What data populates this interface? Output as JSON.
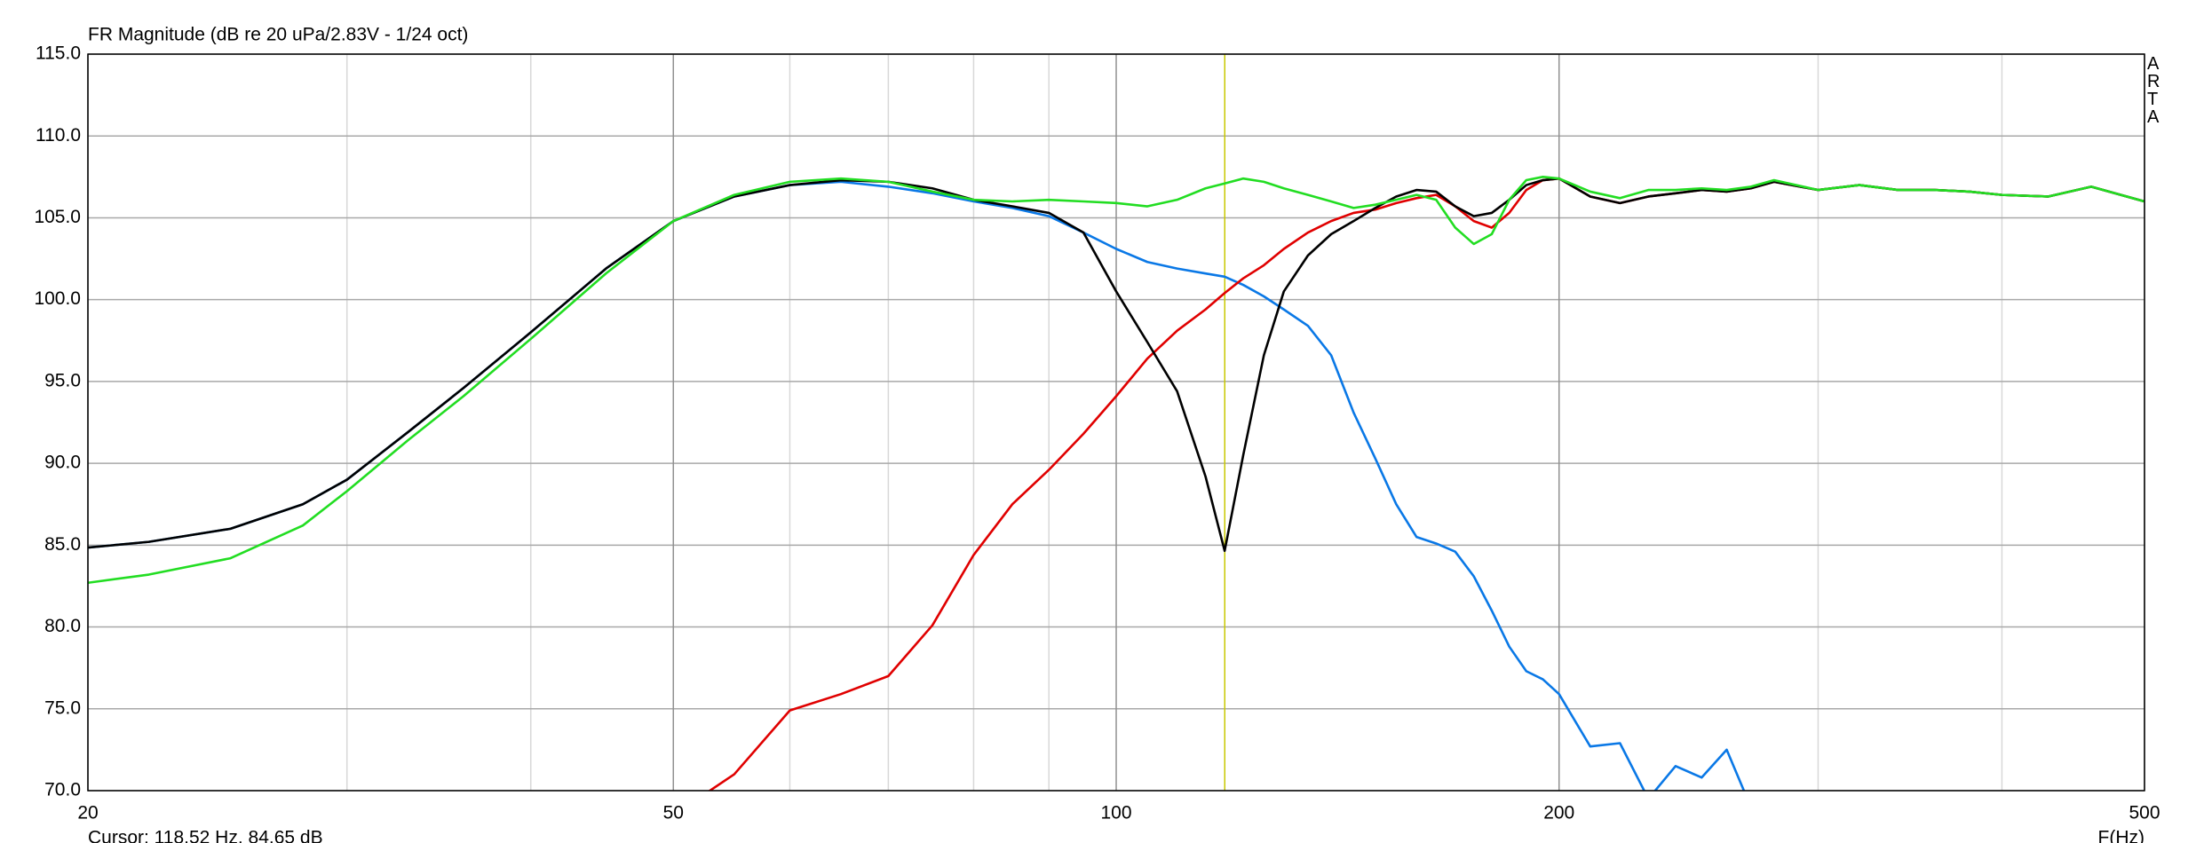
{
  "chart_data": {
    "type": "line",
    "title": "FR Magnitude (dB re 20 uPa/2.83V - 1/24 oct)",
    "x_label": "F(Hz)",
    "watermark": "ARTA",
    "cursor": {
      "label": "Cursor: 118.52 Hz, 84.65 dB",
      "x": 118.52,
      "color": "#c8c800"
    },
    "x_log": true,
    "grid": true,
    "xlim": [
      20,
      500
    ],
    "xticks": [
      20,
      50,
      100,
      200,
      500
    ],
    "xminor": [
      30,
      40,
      60,
      70,
      80,
      90,
      300,
      400
    ],
    "ylim": [
      70,
      115
    ],
    "yticks": [
      {
        "value": 70,
        "label": "70.0"
      },
      {
        "value": 75,
        "label": "75.0"
      },
      {
        "value": 80,
        "label": "80.0"
      },
      {
        "value": 85,
        "label": "85.0"
      },
      {
        "value": 90,
        "label": "90.0"
      },
      {
        "value": 95,
        "label": "95.0"
      },
      {
        "value": 100,
        "label": "100.0"
      },
      {
        "value": 105,
        "label": "105.0"
      },
      {
        "value": 110,
        "label": "110.0"
      },
      {
        "value": 115,
        "label": "115.0"
      }
    ],
    "x": [
      20,
      22,
      25,
      28,
      30,
      33,
      36,
      40,
      45,
      50,
      55,
      60,
      65,
      70,
      75,
      80,
      85,
      90,
      95,
      100,
      105,
      110,
      115,
      118.5,
      122,
      126,
      130,
      135,
      140,
      145,
      150,
      155,
      160,
      165,
      170,
      175,
      180,
      185,
      190,
      195,
      200,
      210,
      220,
      230,
      240,
      250,
      260,
      270,
      280,
      300,
      320,
      340,
      360,
      380,
      400,
      430,
      460,
      500
    ],
    "series": [
      {
        "color": "#0a78e6",
        "values": [
          84.85,
          85.2,
          86.0,
          87.5,
          89.0,
          91.9,
          94.6,
          98.0,
          101.9,
          104.8,
          106.3,
          107.0,
          107.2,
          106.9,
          106.5,
          106.0,
          105.6,
          105.1,
          104.1,
          103.1,
          102.3,
          101.9,
          101.6,
          101.4,
          100.9,
          100.2,
          99.4,
          98.4,
          96.6,
          93.1,
          90.3,
          87.5,
          85.5,
          85.1,
          84.6,
          83.1,
          81.0,
          78.8,
          77.3,
          76.8,
          75.9,
          72.7,
          72.9,
          69.5,
          71.5,
          70.8,
          72.5,
          69.0,
          null,
          null,
          null,
          null,
          null,
          null,
          null,
          null,
          null,
          null
        ]
      },
      {
        "color": "#e00000",
        "values": [
          null,
          null,
          null,
          null,
          null,
          null,
          null,
          null,
          null,
          68.5,
          71.0,
          74.9,
          75.9,
          77.0,
          80.1,
          84.4,
          87.5,
          89.6,
          91.8,
          94.1,
          96.4,
          98.1,
          99.4,
          100.4,
          101.3,
          102.1,
          103.1,
          104.1,
          104.8,
          105.3,
          105.5,
          105.9,
          106.2,
          106.4,
          105.7,
          104.8,
          104.4,
          105.3,
          106.7,
          107.3,
          107.4,
          106.3,
          105.9,
          106.3,
          106.5,
          106.7,
          106.6,
          106.8,
          107.2,
          106.7,
          107.0,
          106.7,
          106.7,
          106.6,
          106.4,
          106.3,
          106.9,
          106.0
        ]
      },
      {
        "color": "#000000",
        "values": [
          84.85,
          85.2,
          86.0,
          87.5,
          89.0,
          91.9,
          94.6,
          98.0,
          101.9,
          104.8,
          106.3,
          107.0,
          107.3,
          107.2,
          106.8,
          106.1,
          105.7,
          105.3,
          104.1,
          100.5,
          97.4,
          94.4,
          89.2,
          84.65,
          90.5,
          96.6,
          100.5,
          102.7,
          104.0,
          104.8,
          105.6,
          106.3,
          106.7,
          106.6,
          105.7,
          105.1,
          105.3,
          106.1,
          107.0,
          107.3,
          107.4,
          106.3,
          105.9,
          106.3,
          106.5,
          106.7,
          106.6,
          106.8,
          107.2,
          106.7,
          107.0,
          106.7,
          106.7,
          106.6,
          106.4,
          106.3,
          106.9,
          106.0
        ]
      },
      {
        "color": "#22dd22",
        "values": [
          82.7,
          83.2,
          84.2,
          86.2,
          88.3,
          91.4,
          94.1,
          97.6,
          101.6,
          104.8,
          106.4,
          107.2,
          107.4,
          107.2,
          106.6,
          106.1,
          106.0,
          106.1,
          106.0,
          105.9,
          105.7,
          106.1,
          106.8,
          107.1,
          107.4,
          107.2,
          106.8,
          106.4,
          106.0,
          105.6,
          105.8,
          106.1,
          106.4,
          106.1,
          104.4,
          103.4,
          104.0,
          106.1,
          107.3,
          107.5,
          107.4,
          106.6,
          106.2,
          106.7,
          106.7,
          106.8,
          106.7,
          106.9,
          107.3,
          106.7,
          107.0,
          106.7,
          106.7,
          106.6,
          106.4,
          106.3,
          106.9,
          106.0
        ]
      }
    ]
  }
}
